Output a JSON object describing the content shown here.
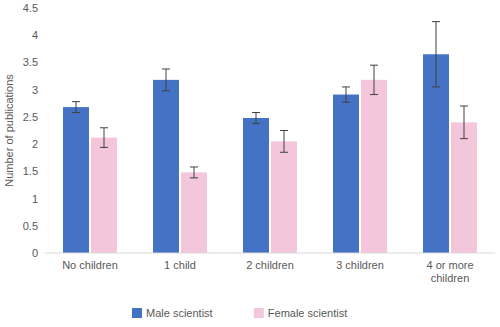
{
  "chart_data": {
    "type": "bar",
    "y_label": "Number of publications",
    "categories": [
      "No children",
      "1 child",
      "2 children",
      "3 children",
      "4 or more children"
    ],
    "series": [
      {
        "name": "Male scientist",
        "color": "#4472c4",
        "values": [
          2.68,
          3.18,
          2.48,
          2.91,
          3.65
        ],
        "errors": [
          0.1,
          0.2,
          0.1,
          0.14,
          0.6
        ]
      },
      {
        "name": "Female scientist",
        "color": "#f3c6dc",
        "values": [
          2.12,
          1.48,
          2.05,
          3.18,
          2.4
        ],
        "errors": [
          0.18,
          0.1,
          0.2,
          0.27,
          0.3
        ]
      }
    ],
    "ylim": [
      0,
      4.5
    ],
    "yticks": [
      0,
      0.5,
      1,
      1.5,
      2,
      2.5,
      3,
      3.5,
      4,
      4.5
    ],
    "grid": false,
    "legend": "bottom"
  }
}
